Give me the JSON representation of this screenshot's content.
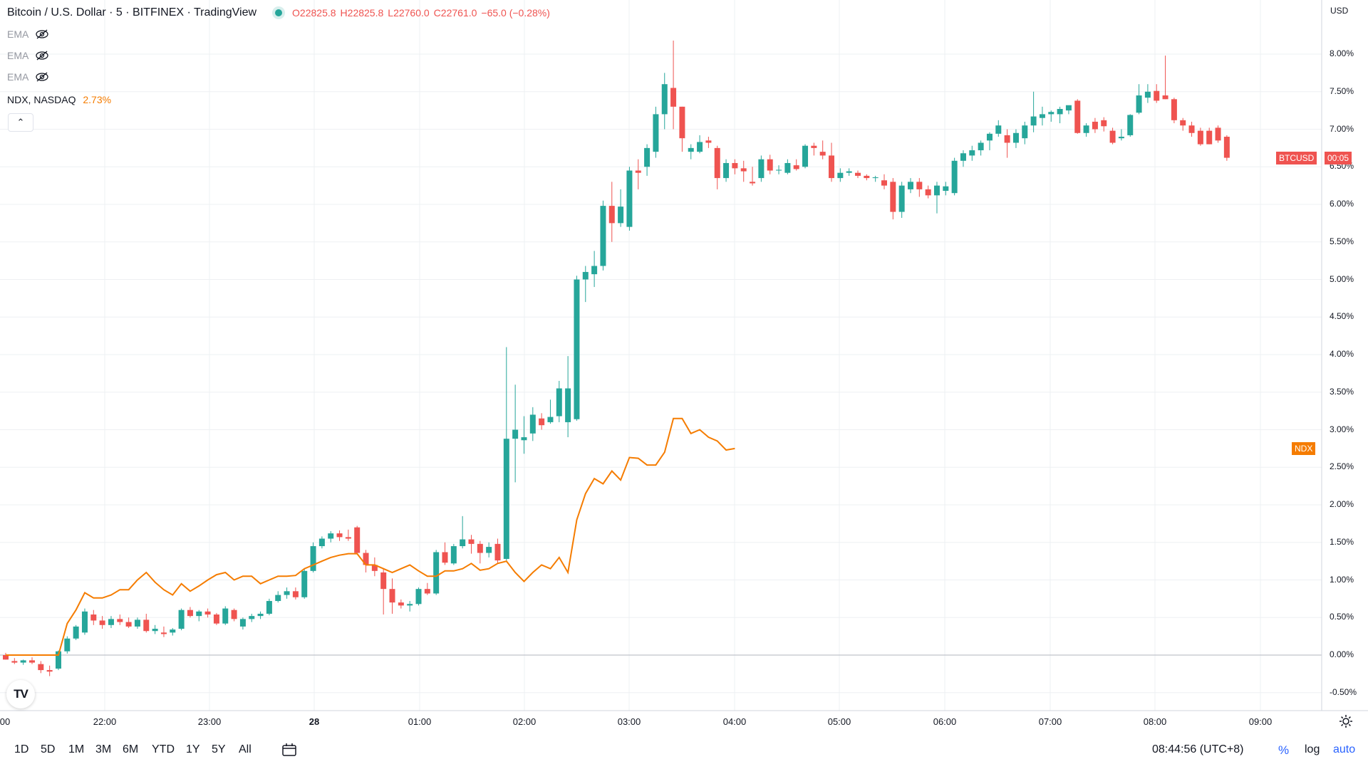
{
  "legend": {
    "symbol": "Bitcoin / U.S. Dollar · 5 · BITFINEX · TradingView",
    "ohlc": [
      {
        "k": "O",
        "v": "22825.8"
      },
      {
        "k": "H",
        "v": "22825.8"
      },
      {
        "k": "L",
        "v": "22760.0"
      },
      {
        "k": "C",
        "v": "22761.0"
      },
      {
        "k": "",
        "v": "−65.0 (−0.28%)"
      }
    ]
  },
  "indicators": [
    {
      "label": "EMA",
      "icon": "eye-hidden-icon"
    },
    {
      "label": "EMA",
      "icon": "eye-hidden-icon"
    },
    {
      "label": "EMA",
      "icon": "eye-hidden-icon"
    }
  ],
  "compare": {
    "label": "NDX, NASDAQ",
    "pct": "2.73%"
  },
  "axis": {
    "currency": "USD",
    "y_labels": [
      "8.00%",
      "7.50%",
      "7.00%",
      "6.50%",
      "6.00%",
      "5.50%",
      "5.00%",
      "4.50%",
      "4.00%",
      "3.50%",
      "3.00%",
      "2.50%",
      "2.00%",
      "1.50%",
      "1.00%",
      "0.50%",
      "0.00%",
      "-0.50%"
    ],
    "x_labels": [
      {
        "t": "00",
        "bold": false
      },
      {
        "t": "22:00",
        "bold": false
      },
      {
        "t": "23:00",
        "bold": false
      },
      {
        "t": "28",
        "bold": true
      },
      {
        "t": "01:00",
        "bold": false
      },
      {
        "t": "02:00",
        "bold": false
      },
      {
        "t": "03:00",
        "bold": false
      },
      {
        "t": "04:00",
        "bold": false
      },
      {
        "t": "05:00",
        "bold": false
      },
      {
        "t": "06:00",
        "bold": false
      },
      {
        "t": "07:00",
        "bold": false
      },
      {
        "t": "08:00",
        "bold": false
      },
      {
        "t": "09:00",
        "bold": false
      }
    ]
  },
  "price_tags": {
    "btc_label": "BTCUSD",
    "btc_value": "00:05",
    "ndx_label": "NDX"
  },
  "colors": {
    "up": "#26a69a",
    "down": "#ef5350",
    "ndx": "#f57c00",
    "grid": "#eef0f3"
  },
  "bottom_bar": {
    "ranges": [
      "1D",
      "5D",
      "1M",
      "3M",
      "6M",
      "YTD",
      "1Y",
      "5Y",
      "All"
    ],
    "time": "08:44:56 (UTC+8)",
    "percent": "%",
    "log": "log",
    "auto": "auto"
  },
  "chart_data": {
    "type": "candlestick",
    "title": "Bitcoin / U.S. Dollar · 5 · BITFINEX",
    "y_unit": "% change",
    "ylim": [
      -0.75,
      8.5
    ],
    "x_start": "21:25",
    "x_interval_minutes": 5,
    "grid": true,
    "btc_candles": [
      [
        0.0,
        0.03,
        -0.06,
        -0.06
      ],
      [
        -0.08,
        -0.04,
        -0.12,
        -0.1
      ],
      [
        -0.1,
        -0.06,
        -0.13,
        -0.07
      ],
      [
        -0.07,
        -0.03,
        -0.12,
        -0.1
      ],
      [
        -0.12,
        -0.08,
        -0.24,
        -0.2
      ],
      [
        -0.2,
        -0.14,
        -0.28,
        -0.22
      ],
      [
        -0.18,
        0.06,
        -0.2,
        0.05
      ],
      [
        0.05,
        0.25,
        0.02,
        0.22
      ],
      [
        0.22,
        0.4,
        0.2,
        0.38
      ],
      [
        0.3,
        0.62,
        0.27,
        0.58
      ],
      [
        0.54,
        0.6,
        0.4,
        0.46
      ],
      [
        0.46,
        0.52,
        0.35,
        0.4
      ],
      [
        0.4,
        0.52,
        0.36,
        0.48
      ],
      [
        0.48,
        0.54,
        0.4,
        0.44
      ],
      [
        0.44,
        0.5,
        0.36,
        0.38
      ],
      [
        0.38,
        0.5,
        0.35,
        0.47
      ],
      [
        0.47,
        0.55,
        0.3,
        0.32
      ],
      [
        0.32,
        0.4,
        0.28,
        0.35
      ],
      [
        0.3,
        0.38,
        0.24,
        0.28
      ],
      [
        0.3,
        0.36,
        0.26,
        0.34
      ],
      [
        0.35,
        0.62,
        0.33,
        0.6
      ],
      [
        0.6,
        0.64,
        0.5,
        0.52
      ],
      [
        0.52,
        0.6,
        0.45,
        0.58
      ],
      [
        0.58,
        0.62,
        0.5,
        0.54
      ],
      [
        0.54,
        0.56,
        0.4,
        0.42
      ],
      [
        0.42,
        0.65,
        0.4,
        0.62
      ],
      [
        0.6,
        0.62,
        0.45,
        0.48
      ],
      [
        0.38,
        0.5,
        0.34,
        0.48
      ],
      [
        0.48,
        0.55,
        0.44,
        0.52
      ],
      [
        0.52,
        0.58,
        0.48,
        0.55
      ],
      [
        0.55,
        0.75,
        0.53,
        0.72
      ],
      [
        0.72,
        0.85,
        0.7,
        0.8
      ],
      [
        0.8,
        0.9,
        0.75,
        0.85
      ],
      [
        0.85,
        0.9,
        0.74,
        0.77
      ],
      [
        0.77,
        1.15,
        0.75,
        1.12
      ],
      [
        1.12,
        1.5,
        1.1,
        1.45
      ],
      [
        1.45,
        1.58,
        1.42,
        1.55
      ],
      [
        1.55,
        1.65,
        1.5,
        1.62
      ],
      [
        1.62,
        1.66,
        1.52,
        1.57
      ],
      [
        1.57,
        1.67,
        1.52,
        1.55
      ],
      [
        1.7,
        1.72,
        1.34,
        1.36
      ],
      [
        1.36,
        1.4,
        1.1,
        1.2
      ],
      [
        1.2,
        1.3,
        1.05,
        1.12
      ],
      [
        1.1,
        1.15,
        0.54,
        0.88
      ],
      [
        0.88,
        1.02,
        0.55,
        0.7
      ],
      [
        0.7,
        0.74,
        0.62,
        0.66
      ],
      [
        0.66,
        0.72,
        0.58,
        0.68
      ],
      [
        0.68,
        0.9,
        0.66,
        0.88
      ],
      [
        0.88,
        0.96,
        0.8,
        0.82
      ],
      [
        0.82,
        1.4,
        0.8,
        1.37
      ],
      [
        1.37,
        1.5,
        1.2,
        1.23
      ],
      [
        1.22,
        1.48,
        1.2,
        1.45
      ],
      [
        1.45,
        1.85,
        1.42,
        1.54
      ],
      [
        1.54,
        1.6,
        1.35,
        1.48
      ],
      [
        1.48,
        1.52,
        1.22,
        1.36
      ],
      [
        1.36,
        1.5,
        1.3,
        1.44
      ],
      [
        1.48,
        1.55,
        1.22,
        1.26
      ],
      [
        1.28,
        4.1,
        1.26,
        2.88
      ],
      [
        2.88,
        3.6,
        2.3,
        3.0
      ],
      [
        2.86,
        3.18,
        2.68,
        2.9
      ],
      [
        2.95,
        3.3,
        2.85,
        3.2
      ],
      [
        3.15,
        3.22,
        3.0,
        3.06
      ],
      [
        3.1,
        3.4,
        3.08,
        3.17
      ],
      [
        3.18,
        3.65,
        3.1,
        3.55
      ],
      [
        3.1,
        3.98,
        2.9,
        3.55
      ],
      [
        3.14,
        5.05,
        3.12,
        5.0
      ],
      [
        5.0,
        5.18,
        4.7,
        5.1
      ],
      [
        5.07,
        5.38,
        4.9,
        5.18
      ],
      [
        5.18,
        6.05,
        5.12,
        5.98
      ],
      [
        5.98,
        6.3,
        5.5,
        5.75
      ],
      [
        5.75,
        6.2,
        5.7,
        5.97
      ],
      [
        5.7,
        6.5,
        5.65,
        6.45
      ],
      [
        6.45,
        6.6,
        6.2,
        6.42
      ],
      [
        6.5,
        6.8,
        6.38,
        6.75
      ],
      [
        6.7,
        7.3,
        6.62,
        7.2
      ],
      [
        7.2,
        7.75,
        7.0,
        7.6
      ],
      [
        7.55,
        8.18,
        7.0,
        7.3
      ],
      [
        7.3,
        7.3,
        6.7,
        6.88
      ],
      [
        6.7,
        6.8,
        6.6,
        6.75
      ],
      [
        6.7,
        6.92,
        6.68,
        6.83
      ],
      [
        6.85,
        6.9,
        6.75,
        6.82
      ],
      [
        6.75,
        6.78,
        6.2,
        6.35
      ],
      [
        6.35,
        6.6,
        6.3,
        6.55
      ],
      [
        6.55,
        6.6,
        6.4,
        6.48
      ],
      [
        6.48,
        6.58,
        6.3,
        6.44
      ],
      [
        6.3,
        6.5,
        6.25,
        6.28
      ],
      [
        6.35,
        6.65,
        6.3,
        6.6
      ],
      [
        6.6,
        6.66,
        6.4,
        6.45
      ],
      [
        6.45,
        6.52,
        6.4,
        6.46
      ],
      [
        6.42,
        6.6,
        6.4,
        6.55
      ],
      [
        6.52,
        6.6,
        6.45,
        6.47
      ],
      [
        6.5,
        6.8,
        6.48,
        6.78
      ],
      [
        6.78,
        6.82,
        6.65,
        6.75
      ],
      [
        6.7,
        6.85,
        6.6,
        6.65
      ],
      [
        6.65,
        6.82,
        6.3,
        6.35
      ],
      [
        6.35,
        6.48,
        6.3,
        6.42
      ],
      [
        6.42,
        6.48,
        6.38,
        6.44
      ],
      [
        6.42,
        6.45,
        6.35,
        6.38
      ],
      [
        6.38,
        6.4,
        6.32,
        6.35
      ],
      [
        6.35,
        6.38,
        6.3,
        6.36
      ],
      [
        6.32,
        6.4,
        6.2,
        6.25
      ],
      [
        6.3,
        6.35,
        5.8,
        5.9
      ],
      [
        5.9,
        6.3,
        5.82,
        6.25
      ],
      [
        6.2,
        6.35,
        6.15,
        6.3
      ],
      [
        6.3,
        6.35,
        6.1,
        6.2
      ],
      [
        6.2,
        6.25,
        6.08,
        6.12
      ],
      [
        6.12,
        6.3,
        5.88,
        6.25
      ],
      [
        6.18,
        6.3,
        6.12,
        6.24
      ],
      [
        6.15,
        6.62,
        6.12,
        6.58
      ],
      [
        6.58,
        6.72,
        6.5,
        6.68
      ],
      [
        6.65,
        6.78,
        6.58,
        6.72
      ],
      [
        6.72,
        6.85,
        6.65,
        6.82
      ],
      [
        6.85,
        6.96,
        6.72,
        6.94
      ],
      [
        6.94,
        7.12,
        6.9,
        7.05
      ],
      [
        6.92,
        7.0,
        6.62,
        6.82
      ],
      [
        6.82,
        7.0,
        6.75,
        6.95
      ],
      [
        6.88,
        7.1,
        6.8,
        7.05
      ],
      [
        7.05,
        7.5,
        6.96,
        7.17
      ],
      [
        7.15,
        7.3,
        7.05,
        7.2
      ],
      [
        7.2,
        7.25,
        7.1,
        7.23
      ],
      [
        7.2,
        7.3,
        7.08,
        7.27
      ],
      [
        7.25,
        7.3,
        7.2,
        7.32
      ],
      [
        7.38,
        7.4,
        6.94,
        6.95
      ],
      [
        6.95,
        7.08,
        6.9,
        7.05
      ],
      [
        7.1,
        7.15,
        6.95,
        7.0
      ],
      [
        7.12,
        7.16,
        6.97,
        7.04
      ],
      [
        6.98,
        7.02,
        6.8,
        6.82
      ],
      [
        6.88,
        7.0,
        6.85,
        6.9
      ],
      [
        6.92,
        7.2,
        6.9,
        7.19
      ],
      [
        7.22,
        7.6,
        7.2,
        7.45
      ],
      [
        7.42,
        7.6,
        7.35,
        7.5
      ],
      [
        7.51,
        7.6,
        7.35,
        7.38
      ],
      [
        7.45,
        7.98,
        7.4,
        7.4
      ],
      [
        7.4,
        7.42,
        7.08,
        7.12
      ],
      [
        7.12,
        7.15,
        6.98,
        7.05
      ],
      [
        7.05,
        7.1,
        6.9,
        6.95
      ],
      [
        6.98,
        7.02,
        6.78,
        6.8
      ],
      [
        6.98,
        7.02,
        6.8,
        6.8
      ],
      [
        7.02,
        7.05,
        6.82,
        6.85
      ],
      [
        6.9,
        6.92,
        6.58,
        6.62
      ]
    ],
    "ndx_series": [
      [
        0,
        0.0
      ],
      [
        6,
        0.0
      ],
      [
        7,
        0.42
      ],
      [
        8,
        0.6
      ],
      [
        9,
        0.83
      ],
      [
        10,
        0.76
      ],
      [
        11,
        0.76
      ],
      [
        12,
        0.8
      ],
      [
        13,
        0.87
      ],
      [
        14,
        0.87
      ],
      [
        15,
        1.0
      ],
      [
        16,
        1.1
      ],
      [
        17,
        0.97
      ],
      [
        18,
        0.87
      ],
      [
        19,
        0.8
      ],
      [
        20,
        0.95
      ],
      [
        21,
        0.85
      ],
      [
        22,
        0.92
      ],
      [
        23,
        1.0
      ],
      [
        24,
        1.07
      ],
      [
        25,
        1.1
      ],
      [
        26,
        1.0
      ],
      [
        27,
        1.05
      ],
      [
        28,
        1.05
      ],
      [
        29,
        0.95
      ],
      [
        30,
        1.0
      ],
      [
        31,
        1.05
      ],
      [
        32,
        1.05
      ],
      [
        33,
        1.06
      ],
      [
        34,
        1.15
      ],
      [
        35,
        1.2
      ],
      [
        36,
        1.25
      ],
      [
        37,
        1.3
      ],
      [
        38,
        1.33
      ],
      [
        39,
        1.35
      ],
      [
        40,
        1.35
      ],
      [
        41,
        1.2
      ],
      [
        42,
        1.2
      ],
      [
        43,
        1.15
      ],
      [
        44,
        1.1
      ],
      [
        45,
        1.15
      ],
      [
        46,
        1.2
      ],
      [
        47,
        1.12
      ],
      [
        48,
        1.05
      ],
      [
        49,
        1.05
      ],
      [
        50,
        1.12
      ],
      [
        51,
        1.12
      ],
      [
        52,
        1.15
      ],
      [
        53,
        1.22
      ],
      [
        54,
        1.13
      ],
      [
        55,
        1.15
      ],
      [
        56,
        1.22
      ],
      [
        57,
        1.25
      ],
      [
        58,
        1.1
      ],
      [
        59,
        0.98
      ],
      [
        60,
        1.1
      ],
      [
        61,
        1.2
      ],
      [
        62,
        1.15
      ],
      [
        63,
        1.3
      ],
      [
        64,
        1.1
      ],
      [
        65,
        1.8
      ],
      [
        66,
        2.15
      ],
      [
        67,
        2.35
      ],
      [
        68,
        2.28
      ],
      [
        69,
        2.45
      ],
      [
        70,
        2.33
      ],
      [
        71,
        2.63
      ],
      [
        72,
        2.62
      ],
      [
        73,
        2.53
      ],
      [
        74,
        2.53
      ],
      [
        75,
        2.7
      ],
      [
        76,
        3.15
      ],
      [
        77,
        3.15
      ],
      [
        78,
        2.95
      ],
      [
        79,
        3.0
      ],
      [
        80,
        2.9
      ],
      [
        81,
        2.85
      ],
      [
        82,
        2.73
      ],
      [
        83,
        2.75
      ]
    ]
  }
}
